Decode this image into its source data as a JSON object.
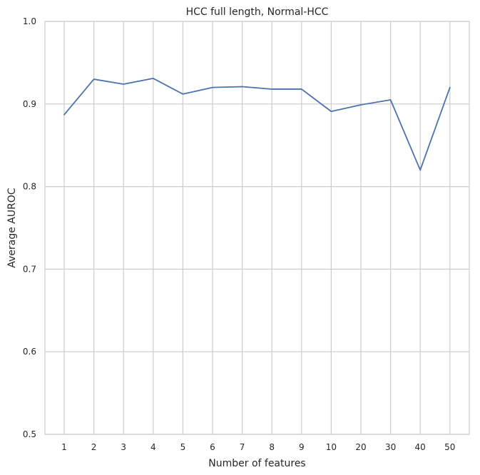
{
  "chart_data": {
    "type": "line",
    "title": "HCC full length, Normal-HCC",
    "xlabel": "Number of features",
    "ylabel": "Average AUROC",
    "categories": [
      "1",
      "2",
      "3",
      "4",
      "5",
      "6",
      "7",
      "8",
      "9",
      "10",
      "20",
      "30",
      "40",
      "50"
    ],
    "series": [
      {
        "values": [
          0.887,
          0.93,
          0.924,
          0.931,
          0.912,
          0.92,
          0.921,
          0.918,
          0.918,
          0.891,
          0.899,
          0.905,
          0.82,
          0.92
        ]
      }
    ],
    "ylim": [
      0.5,
      1.0
    ],
    "yticks": [
      0.5,
      0.6,
      0.7,
      0.8,
      0.9,
      1.0
    ],
    "ytick_labels": [
      "0.5",
      "0.6",
      "0.7",
      "0.8",
      "0.9",
      "1.0"
    ],
    "grid": true,
    "line_color": "#4c72b0",
    "grid_color": "#cccccc",
    "spine_color": "#cccccc"
  }
}
